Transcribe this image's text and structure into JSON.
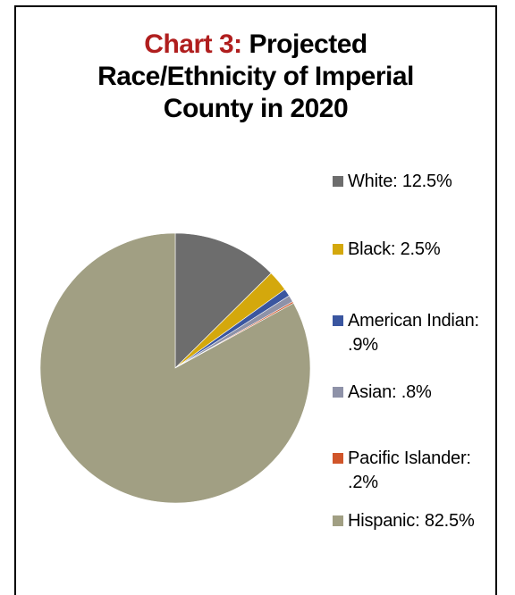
{
  "chart_data": {
    "type": "pie",
    "title_lead": "Chart 3:",
    "title_lines": [
      "Projected",
      "Race/Ethnicity of Imperial",
      "County in 2020"
    ],
    "categories": [
      "White",
      "Black",
      "American Indian",
      "Asian",
      "Pacific Islander",
      "Hispanic"
    ],
    "values": [
      12.5,
      2.5,
      0.9,
      0.8,
      0.2,
      82.5
    ],
    "legend_labels": [
      "White: 12.5%",
      "Black: 2.5%",
      "American Indian: .9%",
      "Asian: .8%",
      "Pacific Islander: .2%",
      "Hispanic: 82.5%"
    ],
    "colors": [
      "#6d6d6d",
      "#d4a80c",
      "#3a56a0",
      "#8e92a8",
      "#d0552a",
      "#a19f83"
    ],
    "legend_position": "right"
  }
}
